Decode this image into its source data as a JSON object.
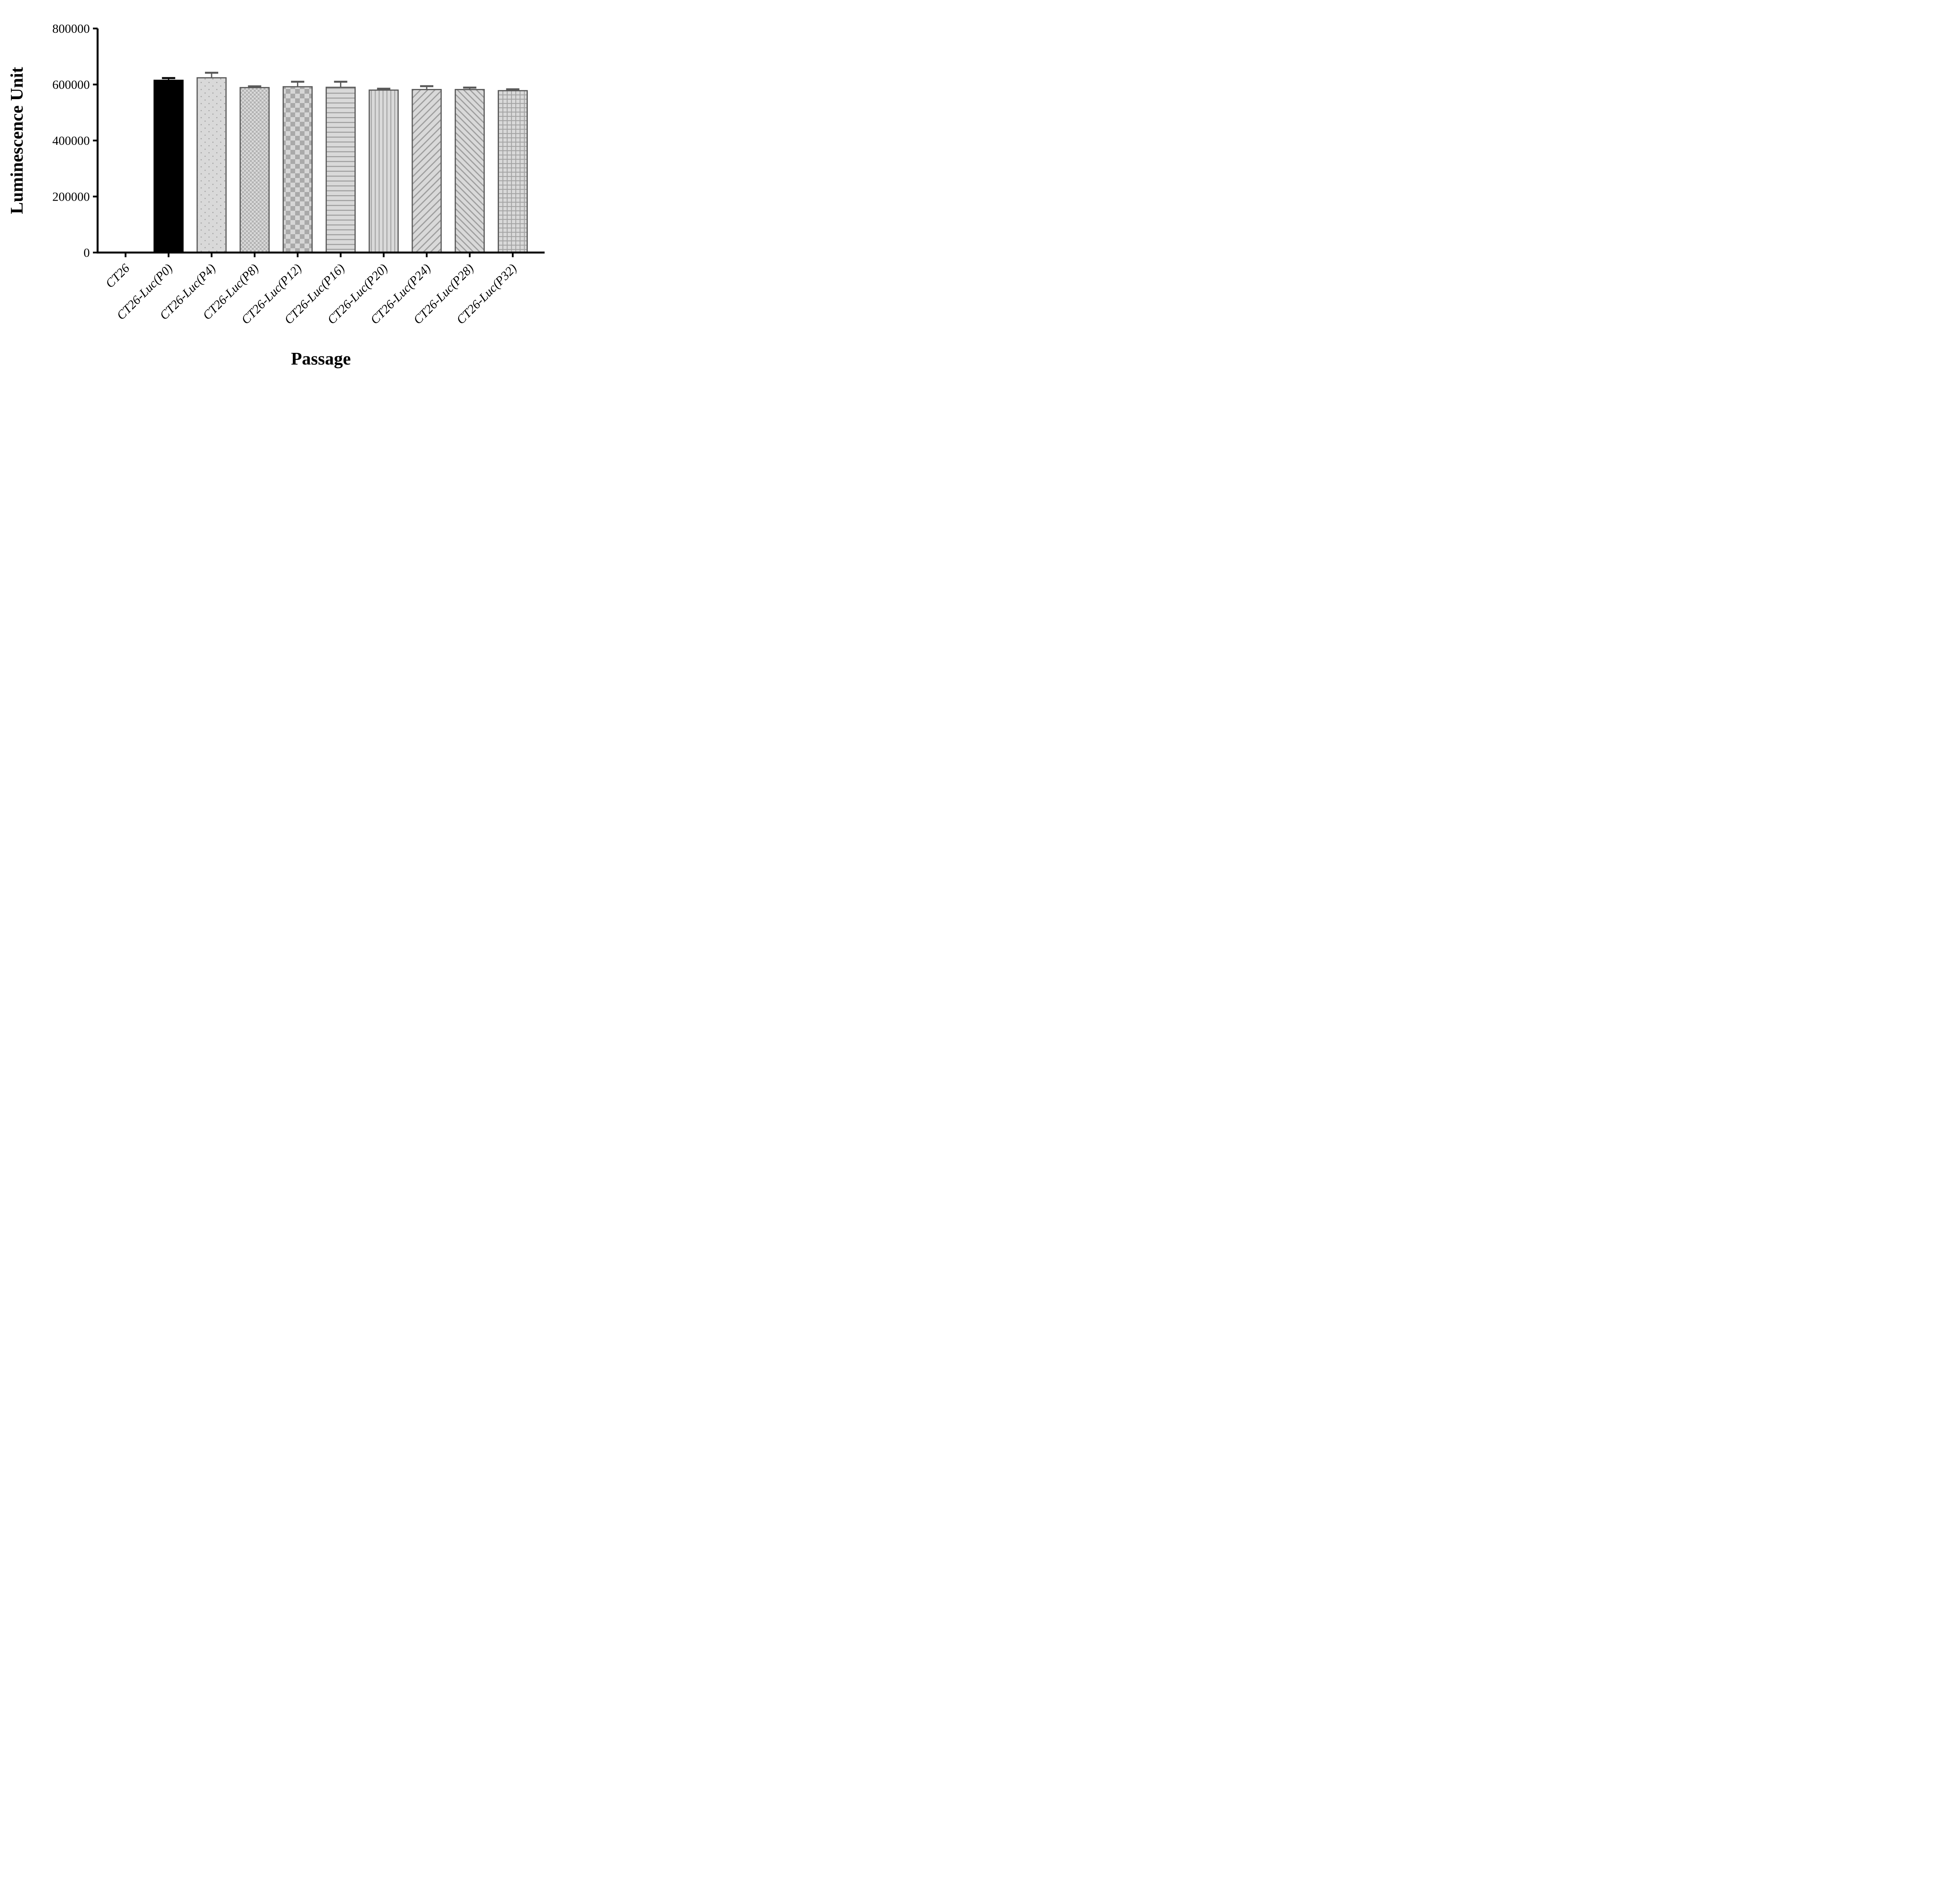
{
  "figure": {
    "background": "#ffffff"
  },
  "chart_data": {
    "type": "bar",
    "title": "",
    "xlabel": "Passage",
    "ylabel": "Luminescence Unit",
    "ylim": [
      0,
      800000
    ],
    "yticks": [
      0,
      200000,
      400000,
      600000,
      800000
    ],
    "grid": false,
    "legend": "none",
    "error_direction": "plus-only",
    "categories": [
      "CT26",
      "CT26-Luc(P0)",
      "CT26-Luc(P4)",
      "CT26-Luc(P8)",
      "CT26-Luc(P12)",
      "CT26-Luc(P16)",
      "CT26-Luc(P20)",
      "CT26-Luc(P24)",
      "CT26-Luc(P28)",
      "CT26-Luc(P32)"
    ],
    "values": [
      0,
      615000,
      624000,
      589000,
      592000,
      590000,
      580000,
      582000,
      582000,
      578000
    ],
    "errors": [
      0,
      8000,
      18000,
      4500,
      18000,
      20000,
      5000,
      12000,
      7000,
      5000
    ],
    "patterns": [
      "none",
      "solid-black",
      "dots",
      "checker-small",
      "checker-large",
      "lines-horizontal",
      "lines-vertical",
      "diagonal-up",
      "diagonal-down",
      "grid"
    ],
    "colors": {
      "bar_black": "#000000",
      "bar_border": "#595959",
      "pattern_bg": "#d9d9d9",
      "pattern_ink": "#9e9e9e",
      "axis": "#000000",
      "text": "#000000"
    }
  }
}
